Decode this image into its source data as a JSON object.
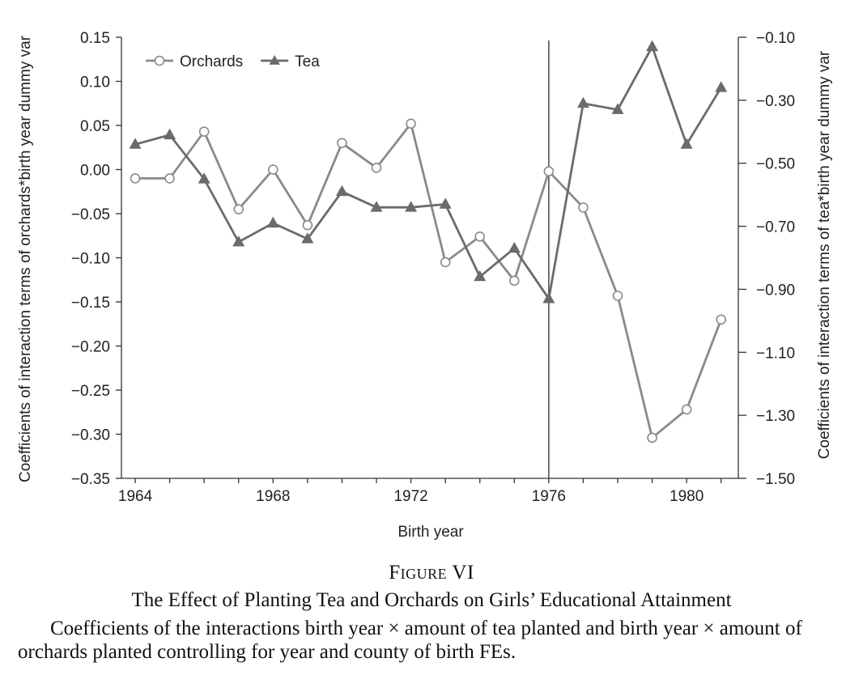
{
  "chart_data": {
    "type": "line",
    "xlabel": "Birth year",
    "ylabel_left": "Coefficients of interaction terms of orchards*birth year dummy var",
    "ylabel_right": "Coefficients of interaction terms of tea*birth year dummy var",
    "xlim": [
      1963.6,
      1981.5
    ],
    "ylim_left": [
      -0.35,
      0.15
    ],
    "ylim_right": [
      -1.5,
      -0.1
    ],
    "x_ticks": [
      "1964",
      "1968",
      "1972",
      "1976",
      "1980"
    ],
    "y_left_ticks": [
      "0.15",
      "0.10",
      "0.05",
      "0.00",
      "−0.05",
      "−0.10",
      "−0.15",
      "−0.20",
      "−0.25",
      "−0.30",
      "−0.35"
    ],
    "y_right_ticks": [
      "−0.10",
      "−0.30",
      "−0.50",
      "−0.70",
      "−0.90",
      "−1.10",
      "−1.30",
      "−1.50"
    ],
    "vertical_line_x": 1976,
    "legend_position": "top-left",
    "x": [
      1964,
      1965,
      1966,
      1967,
      1968,
      1969,
      1970,
      1971,
      1972,
      1973,
      1974,
      1975,
      1976,
      1977,
      1978,
      1979,
      1980,
      1981
    ],
    "series": [
      {
        "name": "Orchards",
        "axis": "left",
        "marker": "open-circle",
        "color": "#8a8a8a",
        "values": [
          -0.01,
          -0.01,
          0.043,
          -0.045,
          0.0,
          -0.063,
          0.03,
          0.002,
          0.052,
          -0.105,
          -0.076,
          -0.126,
          -0.002,
          -0.043,
          -0.143,
          -0.304,
          -0.272,
          -0.17
        ]
      },
      {
        "name": "Tea",
        "axis": "right",
        "marker": "filled-triangle",
        "color": "#6b6b6b",
        "values": [
          -0.44,
          -0.41,
          -0.55,
          -0.75,
          -0.69,
          -0.74,
          -0.59,
          -0.64,
          -0.64,
          -0.63,
          -0.86,
          -0.77,
          -0.93,
          -0.31,
          -0.33,
          -0.13,
          -0.44,
          -0.26
        ]
      }
    ],
    "grid": false
  },
  "caption": {
    "figure_number": "Figure VI",
    "title": "The Effect of Planting Tea and Orchards on Girls’ Educational Attainment",
    "note": "Coefficients of the interactions birth year × amount of tea planted and birth year × amount of orchards planted controlling for year and county of birth FEs."
  }
}
